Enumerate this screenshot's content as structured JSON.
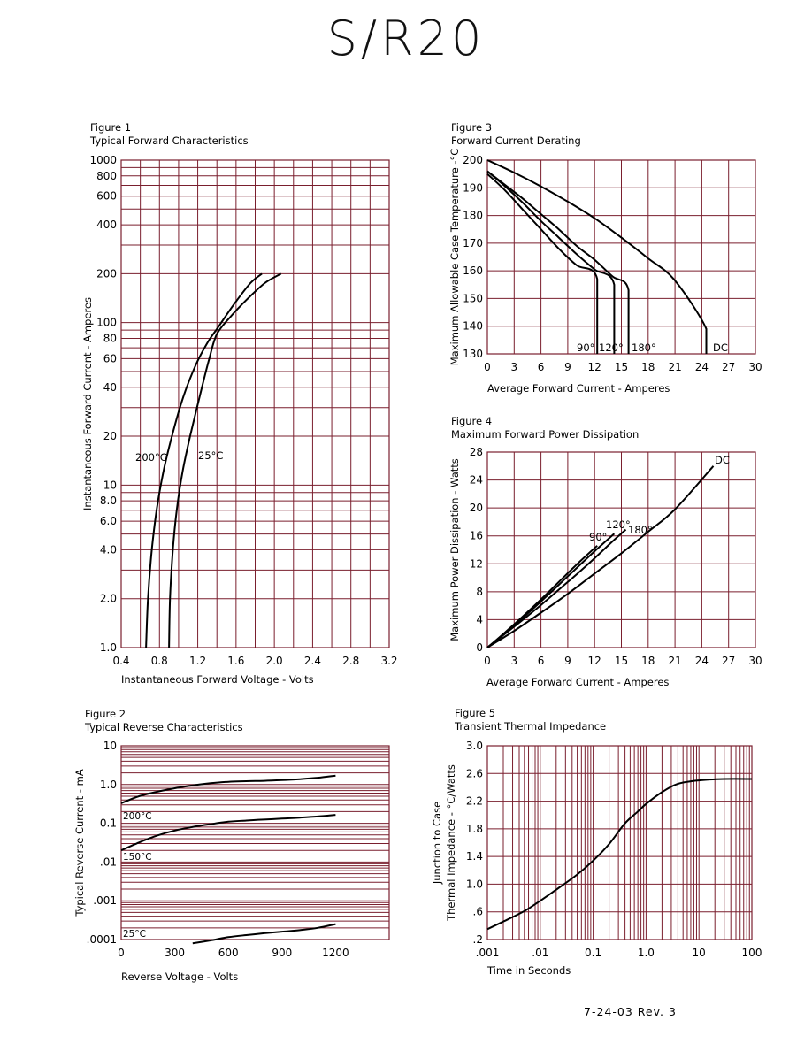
{
  "page": {
    "title": "S/R20",
    "rev_note": "7-24-03   Rev. 3"
  },
  "figures": {
    "fig1": {
      "number": "Figure 1",
      "caption": "Typical Forward Characteristics"
    },
    "fig2": {
      "number": "Figure 2",
      "caption": "Typical Reverse Characteristics"
    },
    "fig3": {
      "number": "Figure 3",
      "caption": "Forward Current Derating"
    },
    "fig4": {
      "number": "Figure 4",
      "caption": "Maximum Forward Power Dissipation"
    },
    "fig5": {
      "number": "Figure 5",
      "caption": "Transient Thermal Impedance"
    }
  },
  "colors": {
    "grid": "#7a1f2e",
    "curve": "#000000",
    "text": "#000000"
  },
  "chart_data": [
    {
      "id": "fig1",
      "type": "line",
      "title": "Typical Forward Characteristics",
      "xlabel": "Instantaneous Forward Voltage - Volts",
      "ylabel": "Instantaneous Forward Current - Amperes",
      "xlim": [
        0.4,
        3.2
      ],
      "ylim": [
        1,
        1000
      ],
      "yscale": "log",
      "xticks": [
        0.4,
        0.8,
        1.2,
        1.6,
        2.0,
        2.4,
        2.8,
        3.2
      ],
      "xtick_labels": [
        "0.4",
        "0.8",
        "1.2",
        "1.6",
        "2.0",
        "2.4",
        "2.8",
        "3.2"
      ],
      "yticks": [
        1,
        2,
        4,
        6,
        8,
        10,
        20,
        40,
        60,
        80,
        100,
        200,
        400,
        600,
        800,
        1000
      ],
      "ytick_labels": [
        "1.0",
        "2.0",
        "4.0",
        "6.0",
        "8.0",
        "10",
        "20",
        "40",
        "60",
        "80",
        "100",
        "200",
        "400",
        "600",
        "800",
        "1000"
      ],
      "grid": true,
      "series": [
        {
          "name": "200°C",
          "x": [
            0.66,
            0.68,
            0.72,
            0.77,
            0.84,
            0.93,
            1.05,
            1.18,
            1.3,
            1.42,
            1.58,
            1.75,
            1.87
          ],
          "y": [
            1,
            2,
            4,
            7,
            12,
            20,
            35,
            55,
            75,
            95,
            130,
            175,
            200
          ]
        },
        {
          "name": "25°C",
          "x": [
            0.9,
            0.91,
            0.94,
            0.98,
            1.04,
            1.12,
            1.22,
            1.32,
            1.4,
            1.55,
            1.72,
            1.9,
            2.07
          ],
          "y": [
            1,
            2,
            4,
            7,
            12,
            20,
            35,
            60,
            85,
            110,
            140,
            175,
            200
          ]
        }
      ]
    },
    {
      "id": "fig2",
      "type": "line",
      "title": "Typical Reverse Characteristics",
      "xlabel": "Reverse Voltage - Volts",
      "ylabel": "Typical Reverse Current - mA",
      "xlim": [
        0,
        1500
      ],
      "ylim": [
        0.0001,
        10
      ],
      "yscale": "log",
      "xticks": [
        0,
        300,
        600,
        900,
        1200
      ],
      "xtick_labels": [
        "0",
        "300",
        "600",
        "900",
        "1200"
      ],
      "yticks": [
        0.0001,
        0.001,
        0.01,
        0.1,
        1,
        10
      ],
      "ytick_labels": [
        ".0001",
        ".001",
        ".01",
        "0.1",
        "1.0",
        "10"
      ],
      "grid": true,
      "series": [
        {
          "name": "200°C",
          "x": [
            0,
            100,
            200,
            300,
            400,
            500,
            600,
            700,
            800,
            900,
            1000,
            1100,
            1200
          ],
          "y": [
            0.33,
            0.5,
            0.65,
            0.8,
            0.95,
            1.08,
            1.18,
            1.22,
            1.25,
            1.3,
            1.38,
            1.5,
            1.7
          ]
        },
        {
          "name": "150°C",
          "x": [
            0,
            100,
            200,
            300,
            400,
            500,
            600,
            700,
            800,
            900,
            1000,
            1100,
            1200
          ],
          "y": [
            0.02,
            0.032,
            0.048,
            0.065,
            0.08,
            0.095,
            0.11,
            0.118,
            0.125,
            0.132,
            0.14,
            0.15,
            0.165
          ]
        },
        {
          "name": "25°C",
          "x": [
            400,
            500,
            600,
            700,
            800,
            900,
            1000,
            1100,
            1200
          ],
          "y": [
            8e-05,
            9.5e-05,
            0.000115,
            0.00013,
            0.000145,
            0.00016,
            0.000175,
            0.0002,
            0.00025
          ]
        }
      ]
    },
    {
      "id": "fig3",
      "type": "line",
      "title": "Forward Current Derating",
      "xlabel": "Average Forward Current - Amperes",
      "ylabel": "Maximum Allowable Case Temperature -°C",
      "xlim": [
        0,
        30
      ],
      "ylim": [
        130,
        200
      ],
      "xticks": [
        0,
        3,
        6,
        9,
        12,
        15,
        18,
        21,
        24,
        27,
        30
      ],
      "xtick_labels": [
        "0",
        "3",
        "6",
        "9",
        "12",
        "15",
        "18",
        "21",
        "24",
        "27",
        "30"
      ],
      "yticks": [
        130,
        140,
        150,
        160,
        170,
        180,
        190,
        200
      ],
      "ytick_labels": [
        "130",
        "140",
        "150",
        "160",
        "170",
        "180",
        "190",
        "200"
      ],
      "grid": true,
      "series": [
        {
          "name": "90°",
          "x": [
            0,
            2,
            4,
            6,
            8,
            10,
            12.3,
            12.3
          ],
          "y": [
            195,
            189,
            182,
            175,
            168,
            162,
            157,
            130
          ]
        },
        {
          "name": "120°",
          "x": [
            0,
            2,
            4,
            6,
            8,
            10,
            12,
            14.2,
            14.2
          ],
          "y": [
            196,
            190.5,
            184.5,
            178,
            172,
            166,
            160.5,
            155,
            130
          ]
        },
        {
          "name": "180°",
          "x": [
            0,
            2,
            4,
            6,
            8,
            10,
            12,
            14,
            15.8,
            15.8
          ],
          "y": [
            196,
            191,
            186,
            180.5,
            175,
            169,
            164,
            158,
            153,
            130
          ]
        },
        {
          "name": "DC",
          "x": [
            0,
            3,
            6,
            9,
            12,
            15,
            18,
            21,
            24.5,
            24.5
          ],
          "y": [
            200,
            195.5,
            190.5,
            185,
            179,
            172,
            164.5,
            156.5,
            139,
            130
          ]
        }
      ]
    },
    {
      "id": "fig4",
      "type": "line",
      "title": "Maximum Forward Power Dissipation",
      "xlabel": "Average Forward Current - Amperes",
      "ylabel": "Maximum Power Dissipation - Watts",
      "xlim": [
        0,
        30
      ],
      "ylim": [
        0,
        28
      ],
      "xticks": [
        0,
        3,
        6,
        9,
        12,
        15,
        18,
        21,
        24,
        27,
        30
      ],
      "xtick_labels": [
        "0",
        "3",
        "6",
        "9",
        "12",
        "15",
        "18",
        "21",
        "24",
        "27",
        "30"
      ],
      "yticks": [
        0,
        4,
        8,
        12,
        16,
        20,
        24,
        28
      ],
      "ytick_labels": [
        "0",
        "4",
        "8",
        "12",
        "16",
        "20",
        "24",
        "28"
      ],
      "grid": true,
      "series": [
        {
          "name": "90°",
          "x": [
            0,
            2,
            4,
            6,
            8,
            10,
            12.3
          ],
          "y": [
            0,
            2.2,
            4.5,
            6.9,
            9.4,
            11.9,
            14.6
          ]
        },
        {
          "name": "120°",
          "x": [
            0,
            2,
            4,
            6,
            8,
            10,
            12,
            14.2
          ],
          "y": [
            0,
            2.1,
            4.3,
            6.6,
            9,
            11.4,
            13.8,
            16.3
          ]
        },
        {
          "name": "180°",
          "x": [
            0,
            2,
            4,
            6,
            8,
            10,
            12,
            14,
            15.5
          ],
          "y": [
            0,
            2,
            4,
            6.1,
            8.3,
            10.5,
            12.8,
            15.2,
            16.9
          ]
        },
        {
          "name": "DC",
          "x": [
            0,
            3,
            6,
            9,
            12,
            15,
            18,
            21,
            25.3
          ],
          "y": [
            0,
            2.4,
            5,
            7.7,
            10.6,
            13.5,
            16.6,
            19.8,
            26
          ]
        }
      ]
    },
    {
      "id": "fig5",
      "type": "line",
      "title": "Transient Thermal Impedance",
      "xlabel": "Time in Seconds",
      "ylabel": "Junction to Case Thermal Impedance - °C/Watts",
      "xlim": [
        0.001,
        100
      ],
      "ylim": [
        0.2,
        3.0
      ],
      "xscale": "log",
      "xticks": [
        0.001,
        0.01,
        0.1,
        1,
        10,
        100
      ],
      "xtick_labels": [
        ".001",
        ".01",
        "0.1",
        "1.0",
        "10",
        "100"
      ],
      "yticks": [
        0.2,
        0.6,
        1.0,
        1.4,
        1.8,
        2.2,
        2.6,
        3.0
      ],
      "ytick_labels": [
        ".2",
        ".6",
        "1.0",
        "1.4",
        "1.8",
        "2.2",
        "2.6",
        "3.0"
      ],
      "grid": true,
      "series": [
        {
          "name": "",
          "x": [
            0.001,
            0.002,
            0.005,
            0.01,
            0.02,
            0.05,
            0.1,
            0.2,
            0.4,
            0.7,
            1,
            2,
            4,
            10,
            30,
            100
          ],
          "y": [
            0.35,
            0.46,
            0.61,
            0.76,
            0.92,
            1.14,
            1.34,
            1.58,
            1.88,
            2.05,
            2.16,
            2.33,
            2.45,
            2.5,
            2.52,
            2.52
          ]
        }
      ]
    }
  ],
  "annotations": {
    "fig1": {
      "t200": "200°C",
      "t25": "25°C"
    },
    "fig2": {
      "t200": "200°C",
      "t150": "150°C",
      "t25": "25°C"
    },
    "fig3": {
      "a90": "90°",
      "a120": "120°",
      "a180": "180°",
      "dc": "DC"
    },
    "fig4": {
      "a90": "90°",
      "a120": "120°",
      "a180": "180°",
      "dc": "DC"
    }
  }
}
